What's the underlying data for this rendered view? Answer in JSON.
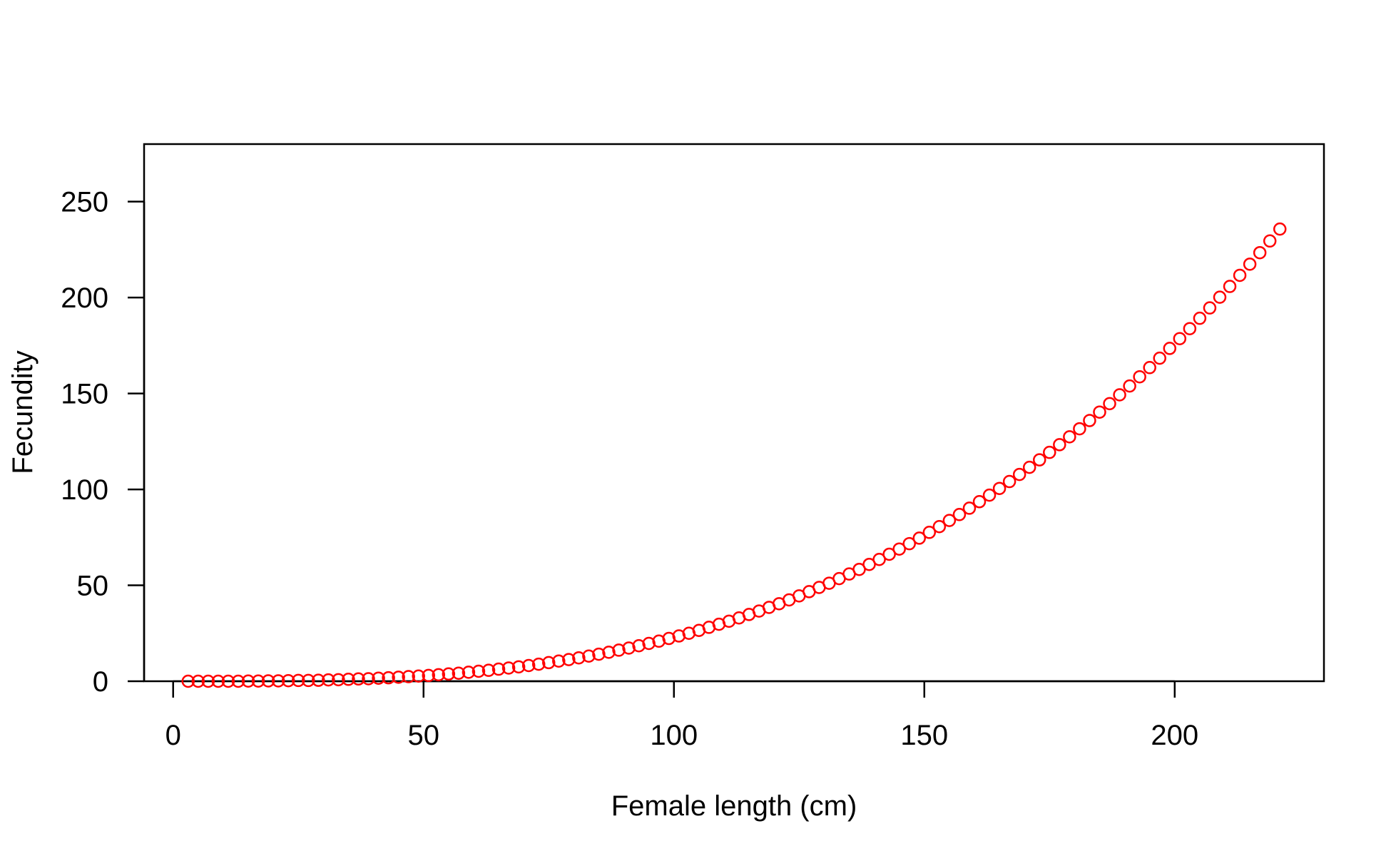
{
  "chart_data": {
    "type": "scatter",
    "xlabel": "Female length (cm)",
    "ylabel": "Fecundity",
    "xlim": [
      -5.8,
      229.8
    ],
    "ylim": [
      0,
      280
    ],
    "xticks": [
      0,
      50,
      100,
      150,
      200
    ],
    "yticks": [
      0,
      50,
      100,
      150,
      200,
      250
    ],
    "grid": false,
    "legend": "none",
    "point_style": "open circle",
    "point_color": "#ff0000",
    "series": [
      {
        "x": [
          3,
          5,
          7,
          9,
          11,
          13,
          15,
          17,
          19,
          21,
          23,
          25,
          27,
          29,
          31,
          33,
          35,
          37,
          39,
          41,
          43,
          45,
          47,
          49,
          51,
          53,
          55,
          57,
          59,
          61,
          63,
          65,
          67,
          69,
          71,
          73,
          75,
          77,
          79,
          81,
          83,
          85,
          87,
          89,
          91,
          93,
          95,
          97,
          99,
          101,
          103,
          105,
          107,
          109,
          111,
          113,
          115,
          117,
          119,
          121,
          123,
          125,
          127,
          129,
          131,
          133,
          135,
          137,
          139,
          141,
          143,
          145,
          147,
          149,
          151,
          153,
          155,
          157,
          159,
          161,
          163,
          165,
          167,
          169,
          171,
          173,
          175,
          177,
          179,
          181,
          183,
          185,
          187,
          189,
          191,
          193,
          195,
          197,
          199,
          201,
          203,
          205,
          207,
          209,
          211,
          213,
          215,
          217,
          219,
          221
        ],
        "y": [
          0,
          0,
          0,
          0,
          0,
          0,
          0.1,
          0.1,
          0.2,
          0.2,
          0.3,
          0.4,
          0.4,
          0.5,
          0.7,
          0.8,
          1,
          1.2,
          1.3,
          1.6,
          1.8,
          2.1,
          2.4,
          2.7,
          3,
          3.4,
          3.8,
          4.2,
          4.7,
          5.2,
          5.7,
          6.3,
          6.9,
          7.5,
          8.2,
          8.9,
          9.7,
          10.5,
          11.3,
          12.2,
          13.1,
          14.1,
          15.1,
          16.2,
          17.3,
          18.5,
          19.7,
          20.9,
          22.3,
          23.6,
          25,
          26.5,
          28.1,
          29.7,
          31.3,
          33,
          34.8,
          36.6,
          38.5,
          40.4,
          42.4,
          44.5,
          46.7,
          48.9,
          51.1,
          53.5,
          55.9,
          58.3,
          60.9,
          63.5,
          66.2,
          68.9,
          71.7,
          74.6,
          77.6,
          80.6,
          83.8,
          86.9,
          90.2,
          93.6,
          97,
          100.5,
          104.1,
          107.8,
          111.5,
          115.4,
          119.3,
          123.3,
          127.4,
          131.6,
          135.9,
          140.3,
          144.7,
          149.3,
          153.9,
          158.7,
          163.5,
          168.4,
          173.5,
          178.6,
          183.8,
          189.2,
          194.6,
          200.2,
          205.8,
          211.6,
          217.4,
          223.4,
          229.5,
          235.7
        ]
      }
    ]
  }
}
